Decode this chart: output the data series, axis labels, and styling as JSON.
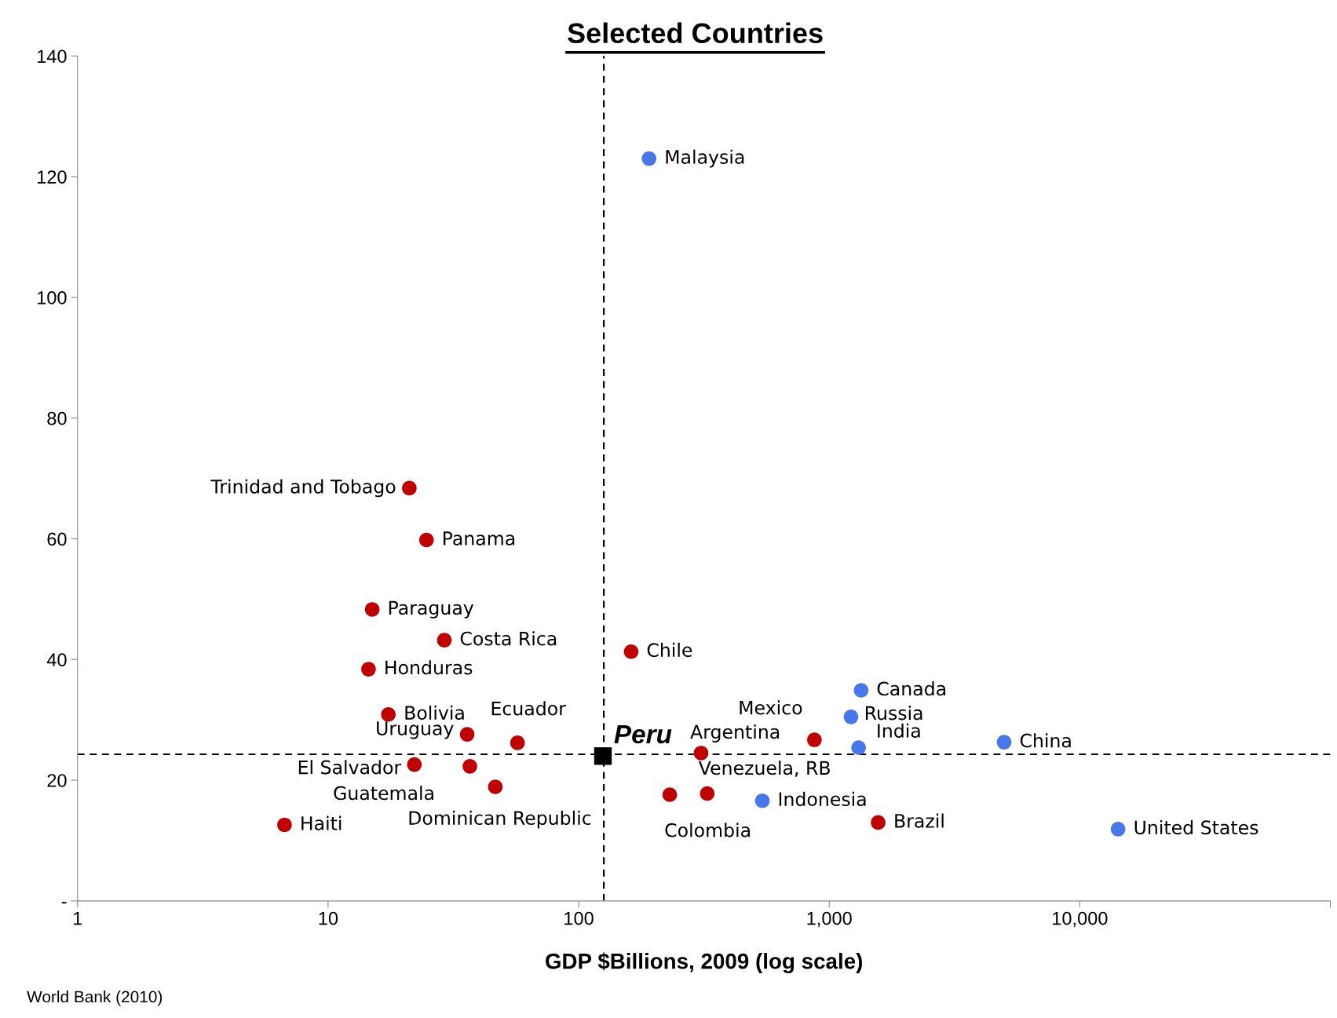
{
  "chart_data": {
    "type": "scatter",
    "title": "Selected Countries",
    "xlabel": "GDP $Billions, 2009 (log scale)",
    "annotations": [
      "World Bank (2010)"
    ],
    "log": "x",
    "marker": "circle",
    "grid": false,
    "legend": false,
    "xlim": [
      1,
      100000
    ],
    "xticks": [
      {
        "value": 1,
        "label": "1"
      },
      {
        "value": 10,
        "label": "10"
      },
      {
        "value": 100,
        "label": "100"
      },
      {
        "value": 1000,
        "label": "1,000"
      },
      {
        "value": 10000,
        "label": "10,000"
      },
      {
        "value": 100000,
        "label": null
      }
    ],
    "ylim": [
      0,
      140
    ],
    "yticks": [
      {
        "value": 0,
        "label": "-"
      },
      20,
      40,
      60,
      80,
      100,
      120,
      140
    ],
    "ref_lines": [
      {
        "axis": "x",
        "value": 126,
        "line_style": "dashed",
        "color": "#000000"
      },
      {
        "axis": "y",
        "value": 24.3,
        "line_style": "dashed",
        "color": "#000000"
      }
    ],
    "series": [
      {
        "color": "#c00000",
        "x": [
          21.1,
          24.7,
          15.0,
          29.1,
          14.5,
          162,
          17.4,
          35.9,
          57.0,
          22.1,
          36.8,
          46.5,
          6.7,
          308,
          231,
          326,
          873,
          1568
        ],
        "values": [
          68.4,
          59.8,
          48.3,
          43.2,
          38.4,
          41.3,
          30.9,
          27.6,
          26.2,
          22.6,
          22.3,
          18.9,
          12.6,
          24.5,
          17.6,
          17.8,
          26.7,
          13.0
        ],
        "value_labels": [
          "Trinidad and Tobago",
          "Panama",
          "Paraguay",
          "Costa Rica",
          "Honduras",
          "Chile",
          "Bolivia",
          "Uruguay",
          "Ecuador",
          "El Salvador",
          "Guatemala",
          "Dominican Republic",
          "Haiti",
          "Argentina",
          "Colombia",
          "Venezuela, RB",
          "Mexico",
          "Brazil"
        ]
      },
      {
        "color": "#4777e8",
        "x": [
          191,
          1341,
          1222,
          1310,
          4990,
          541,
          14220
        ],
        "values": [
          123.0,
          34.9,
          30.5,
          25.4,
          26.3,
          16.6,
          11.9
        ],
        "value_labels": [
          "Malaysia",
          "Canada",
          "Russia",
          "India",
          "China",
          "Indonesia",
          "United States"
        ]
      },
      {
        "color": "#000000",
        "marker": "square",
        "x": [
          125
        ],
        "values": [
          24.0
        ],
        "value_labels": [
          "Peru"
        ]
      }
    ]
  }
}
